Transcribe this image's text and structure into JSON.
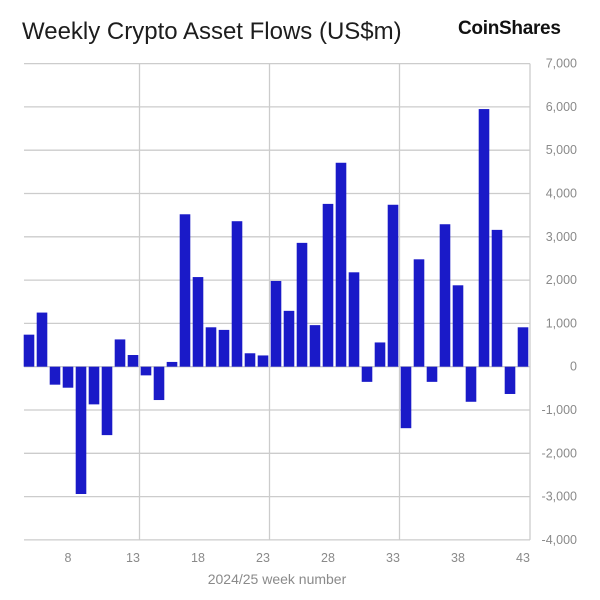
{
  "chart_data": {
    "type": "bar",
    "title": "Weekly Crypto Asset Flows (US$m)",
    "xlabel": "2024/25 week number",
    "ylabel": "",
    "categories": [
      5,
      6,
      7,
      8,
      9,
      10,
      11,
      12,
      13,
      14,
      15,
      16,
      17,
      18,
      19,
      20,
      21,
      22,
      23,
      24,
      25,
      26,
      27,
      28,
      29,
      30,
      31,
      32,
      33,
      34,
      35,
      36,
      37,
      38,
      39,
      40,
      41,
      42,
      43
    ],
    "values": [
      740,
      1250,
      -415,
      -485,
      -2940,
      -870,
      -1580,
      630,
      270,
      -200,
      -770,
      110,
      3520,
      2070,
      910,
      850,
      3360,
      310,
      260,
      1980,
      1290,
      2860,
      960,
      3760,
      4710,
      2180,
      -350,
      560,
      3740,
      -1420,
      2480,
      -350,
      3290,
      1880,
      -810,
      5950,
      3160,
      -630,
      910
    ],
    "xticks": [
      "8",
      "13",
      "18",
      "23",
      "28",
      "33",
      "38",
      "43"
    ],
    "yticks": [
      "7,000",
      "6,000",
      "5,000",
      "4,000",
      "3,000",
      "2,000",
      "1,000",
      "0",
      "-1,000",
      "-2,000",
      "-3,000",
      "-4,000"
    ],
    "ylim": [
      -4000,
      7000
    ],
    "yaxis_position": "right",
    "grid": true,
    "bar_color": "#1a1ac8",
    "grid_color": "#cccccc"
  },
  "brand": {
    "logo_text": "CoinShares"
  }
}
